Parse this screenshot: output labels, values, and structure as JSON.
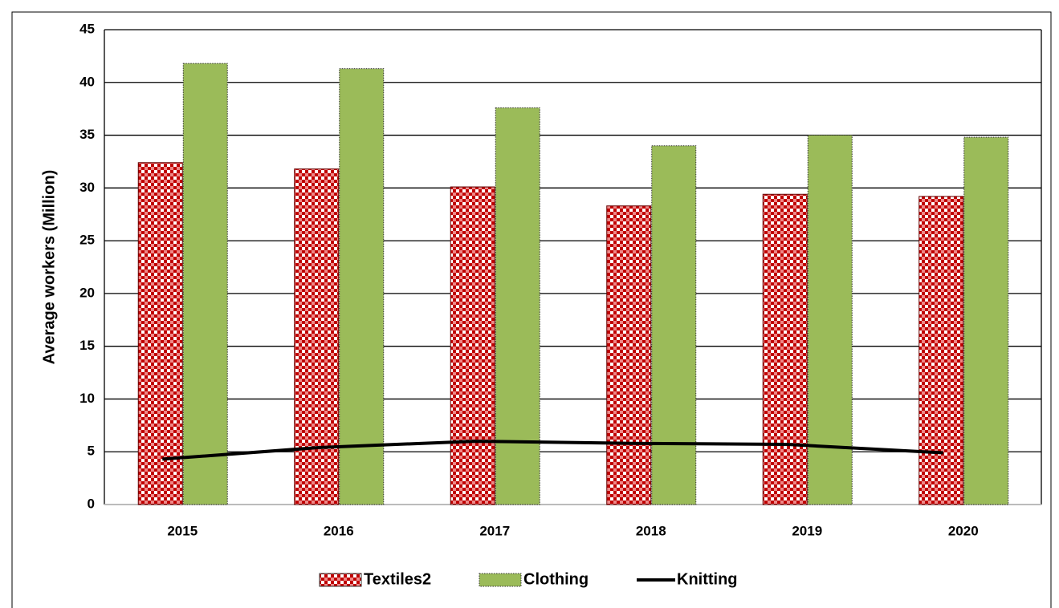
{
  "chart_data": {
    "type": "bar",
    "y_label": "Average workers (Million)",
    "categories": [
      "2015",
      "2016",
      "2017",
      "2018",
      "2019",
      "2020"
    ],
    "series": [
      {
        "name": "Textiles2",
        "color": "#c00000",
        "values": [
          32.4,
          31.8,
          30.1,
          28.3,
          29.4,
          29.2
        ]
      },
      {
        "name": "Clothing",
        "color": "#9bbb59",
        "values": [
          41.8,
          41.3,
          37.6,
          34.0,
          35.0,
          34.8
        ]
      },
      {
        "name": "Knitting",
        "color": "#000000",
        "type": "line",
        "values": [
          4.3,
          5.4,
          6.0,
          5.8,
          5.7,
          4.9
        ]
      }
    ],
    "ylim": [
      0,
      45
    ],
    "yticks": [
      0,
      5,
      10,
      15,
      20,
      25,
      30,
      35,
      40,
      45
    ],
    "grid": true,
    "legend": "bottom"
  }
}
